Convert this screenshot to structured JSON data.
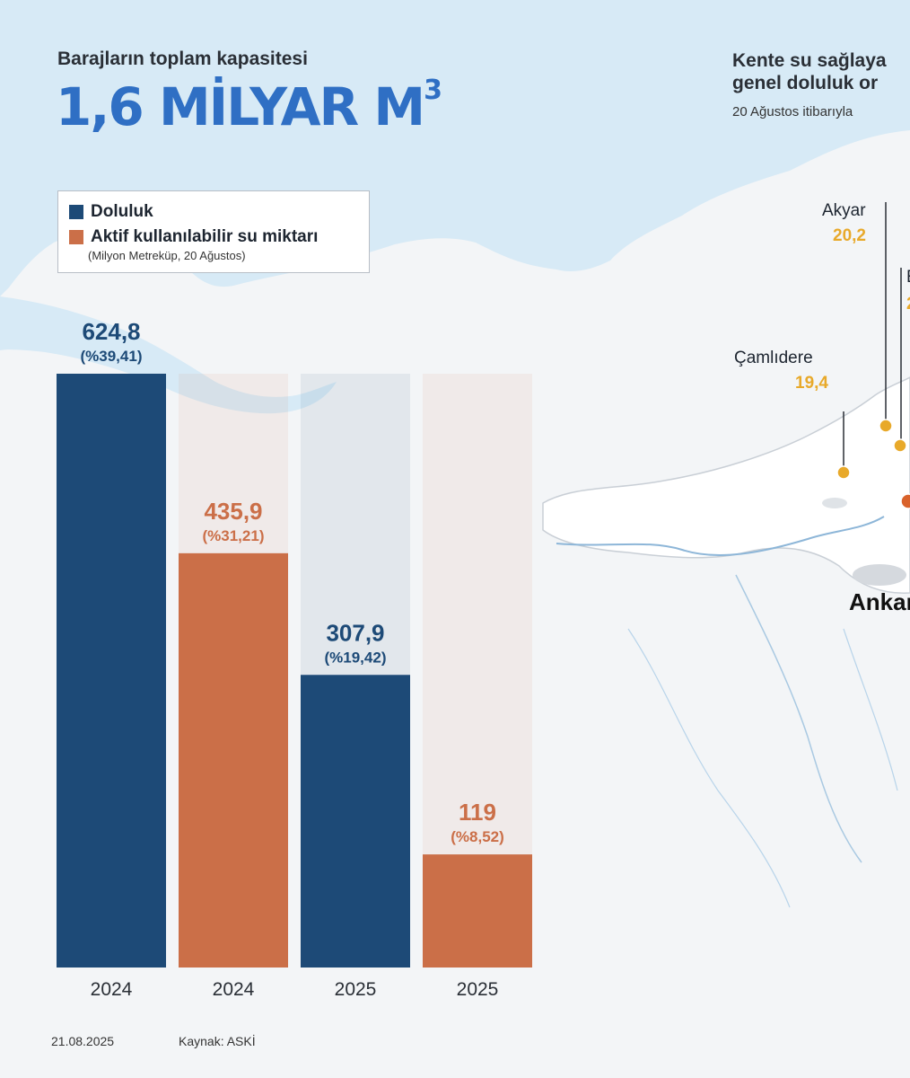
{
  "header": {
    "subtitle": "Barajların toplam kapasitesi",
    "total_capacity": "1,6 MİLYAR M",
    "total_capacity_sup": "3"
  },
  "legend": {
    "items": [
      {
        "label": "Doluluk",
        "color": "#1d4a77"
      },
      {
        "label": "Aktif kullanılabilir su miktarı",
        "color": "#cb6f48"
      }
    ],
    "note": "(Milyon Metreküp, 20 Ağustos)"
  },
  "chart_data": {
    "type": "bar",
    "categories": [
      "2024",
      "2024",
      "2025",
      "2025"
    ],
    "values": [
      624.8,
      435.9,
      307.9,
      119
    ],
    "value_labels": [
      "624,8",
      "435,9",
      "307,9",
      "119"
    ],
    "percent_labels": [
      "(%39,41)",
      "(%31,21)",
      "(%19,42)",
      "(%8,52)"
    ],
    "bar_series": [
      "Doluluk",
      "Aktif kullanılabilir su miktarı",
      "Doluluk",
      "Aktif kullanılabilir su miktarı"
    ],
    "colors": [
      "#1d4a77",
      "#cb6f48",
      "#1d4a77",
      "#cb6f48"
    ],
    "label_colors": [
      "#1d4a77",
      "#cb6f48",
      "#1d4a77",
      "#cb6f48"
    ],
    "background_bar_values": [
      624.8,
      624.8,
      624.8,
      624.8
    ],
    "ylim": [
      0,
      624.8
    ],
    "xlabel": "",
    "ylabel": "",
    "grid": false
  },
  "map_panel": {
    "title_line1": "Kente su sağlaya",
    "title_line2": "genel doluluk or",
    "date": "20 Ağustos itibarıyla",
    "dams": [
      {
        "name": "Akyar",
        "value": "20,2"
      },
      {
        "name": "Çamlıdere",
        "value": "19,4"
      }
    ],
    "partial_label": "E",
    "partial_value": "2",
    "city": "Ankar",
    "marker_color": "#e8a92a",
    "city_marker_color": "#d9622b"
  },
  "footer": {
    "date": "21.08.2025",
    "source": "Kaynak: ASKİ"
  }
}
